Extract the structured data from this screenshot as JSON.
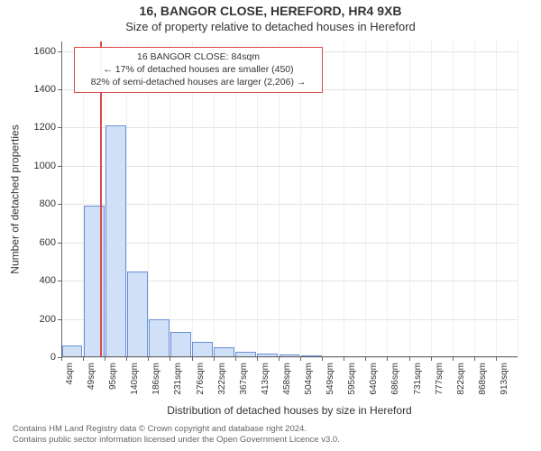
{
  "titles": {
    "main": "16, BANGOR CLOSE, HEREFORD, HR4 9XB",
    "sub": "Size of property relative to detached houses in Hereford"
  },
  "axes": {
    "y_label": "Number of detached properties",
    "x_label": "Distribution of detached houses by size in Hereford",
    "y_label_fontsize": 12,
    "x_label_fontsize": 12,
    "tick_fontsize": 11
  },
  "chart": {
    "type": "histogram",
    "ylim": [
      0,
      1650
    ],
    "yticks": [
      0,
      200,
      400,
      600,
      800,
      1000,
      1200,
      1400,
      1600
    ],
    "xticks": [
      "4sqm",
      "49sqm",
      "95sqm",
      "140sqm",
      "186sqm",
      "231sqm",
      "276sqm",
      "322sqm",
      "367sqm",
      "413sqm",
      "458sqm",
      "504sqm",
      "549sqm",
      "595sqm",
      "640sqm",
      "686sqm",
      "731sqm",
      "777sqm",
      "822sqm",
      "868sqm",
      "913sqm"
    ],
    "bars": [
      60,
      790,
      1210,
      450,
      200,
      130,
      80,
      50,
      30,
      20,
      12,
      8,
      6,
      5,
      4,
      3,
      3,
      2,
      2,
      2,
      1
    ],
    "marker_bin_index": 1,
    "colors": {
      "bar_fill": "#cfe0f7",
      "bar_border": "#6a8fd8",
      "marker_line": "#d94a4a",
      "grid": "#f0f0f2",
      "grid_major": "#e4e4e8",
      "axis_line": "#666666",
      "annotation_border": "#d94a4a",
      "background": "#ffffff"
    },
    "bar_width_ratio": 0.95
  },
  "annotation": {
    "line1": "16 BANGOR CLOSE: 84sqm",
    "line2": "← 17% of detached houses are smaller (450)",
    "line3": "82% of semi-detached houses are larger (2,206) →"
  },
  "footer": {
    "line1": "Contains HM Land Registry data © Crown copyright and database right 2024.",
    "line2": "Contains public sector information licensed under the Open Government Licence v3.0."
  }
}
